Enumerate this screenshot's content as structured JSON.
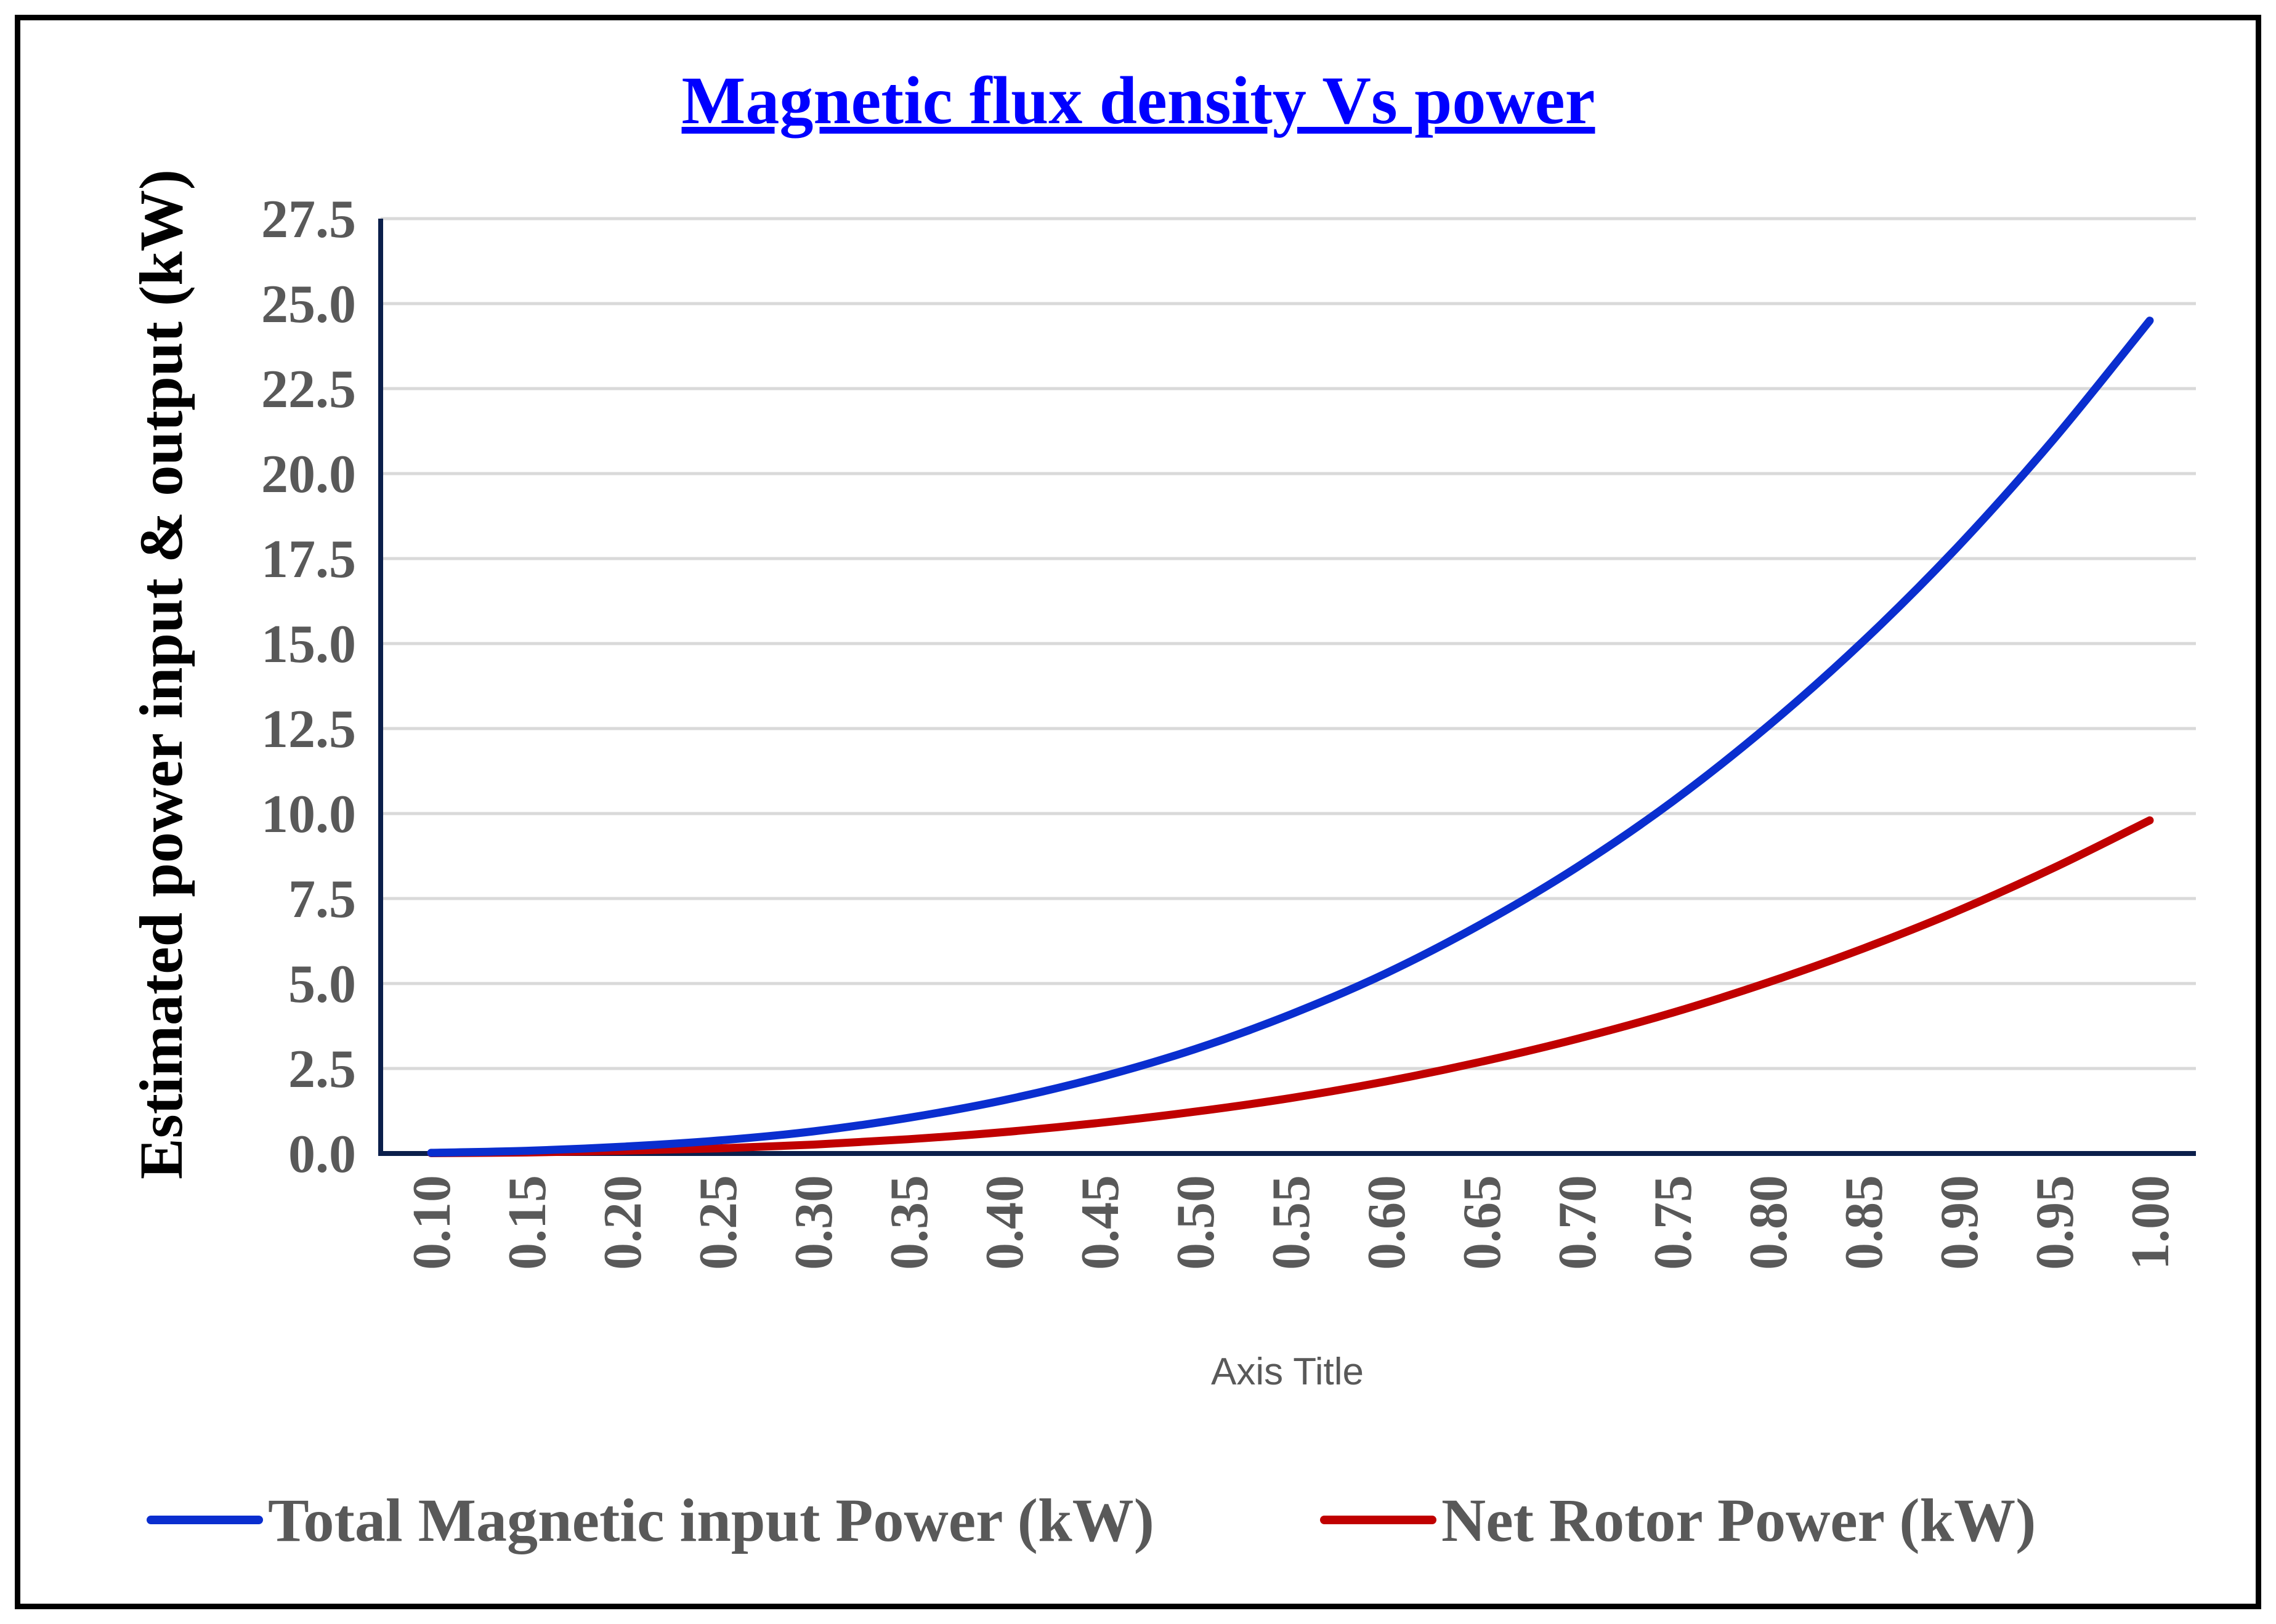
{
  "chart_data": {
    "type": "line",
    "title": "Magnetic flux density Vs power",
    "xlabel": "Axis Title",
    "ylabel": "Estimated power input & output (kW)",
    "x": [
      "0.10",
      "0.15",
      "0.20",
      "0.25",
      "0.30",
      "0.35",
      "0.40",
      "0.45",
      "0.50",
      "0.55",
      "0.60",
      "0.65",
      "0.70",
      "0.75",
      "0.80",
      "0.85",
      "0.90",
      "0.95",
      "1.00"
    ],
    "y_ticks": [
      "0.0",
      "2.5",
      "5.0",
      "7.5",
      "10.0",
      "12.5",
      "15.0",
      "17.5",
      "20.0",
      "22.5",
      "25.0",
      "27.5"
    ],
    "ylim": [
      0,
      27.5
    ],
    "grid": true,
    "legend_position": "bottom",
    "series": [
      {
        "name": "Total Magnetic input Power (kW)",
        "color": "#0A2ECF",
        "values": [
          0.02,
          0.08,
          0.2,
          0.38,
          0.65,
          1.05,
          1.57,
          2.24,
          3.07,
          4.09,
          5.3,
          6.75,
          8.42,
          10.35,
          12.57,
          15.07,
          17.88,
          21.03,
          24.5
        ]
      },
      {
        "name": "Net Rotor Power (kW)",
        "color": "#C00000",
        "values": [
          0.01,
          0.03,
          0.08,
          0.15,
          0.26,
          0.42,
          0.63,
          0.9,
          1.23,
          1.63,
          2.12,
          2.7,
          3.37,
          4.14,
          5.03,
          6.03,
          7.15,
          8.41,
          9.8
        ]
      }
    ]
  },
  "colors": {
    "title": "#0000FF",
    "axis": "#0B1F4B",
    "grid": "#D9D9D9"
  }
}
